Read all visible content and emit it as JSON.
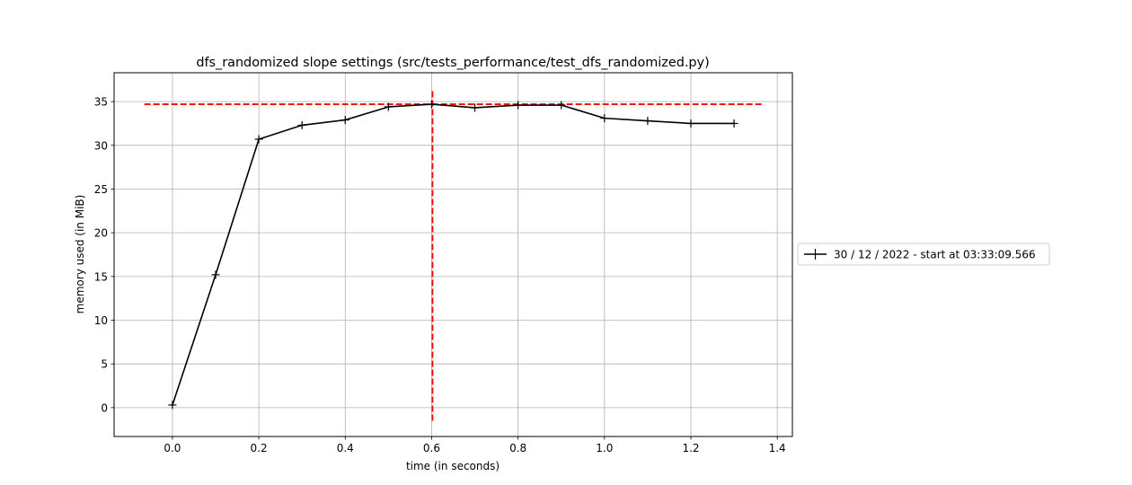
{
  "chart_data": {
    "type": "line",
    "title": "dfs_randomized slope settings (src/tests_performance/test_dfs_randomized.py)",
    "xlabel": "time (in seconds)",
    "ylabel": "memory used (in MiB)",
    "xlim": [
      -0.135,
      1.435
    ],
    "ylim": [
      -3.3,
      38.3
    ],
    "xticks": [
      0.0,
      0.2,
      0.4,
      0.6,
      0.8,
      1.0,
      1.2,
      1.4
    ],
    "xtick_labels": [
      "0.0",
      "0.2",
      "0.4",
      "0.6",
      "0.8",
      "1.0",
      "1.2",
      "1.4"
    ],
    "yticks": [
      0,
      5,
      10,
      15,
      20,
      25,
      30,
      35
    ],
    "ytick_labels": [
      "0",
      "5",
      "10",
      "15",
      "20",
      "25",
      "30",
      "35"
    ],
    "grid": true,
    "legend_position": "outside-right",
    "series": [
      {
        "name": "30 / 12 / 2022 - start at 03:33:09.566",
        "color": "#000000",
        "marker": "+",
        "x": [
          0.0,
          0.1,
          0.2,
          0.3,
          0.4,
          0.5,
          0.6,
          0.7,
          0.8,
          0.9,
          1.0,
          1.1,
          1.2,
          1.3
        ],
        "y": [
          0.3,
          15.2,
          30.7,
          32.3,
          32.9,
          34.4,
          34.7,
          34.3,
          34.6,
          34.6,
          33.1,
          32.8,
          32.5,
          32.5
        ]
      }
    ],
    "reference_lines": [
      {
        "orientation": "horizontal",
        "y": 34.7,
        "x_from": -0.065,
        "x_to": 1.37,
        "color": "#ff0000",
        "style": "dashed"
      },
      {
        "orientation": "vertical",
        "x": 0.602,
        "y_from": -1.5,
        "y_to": 36.5,
        "color": "#ff0000",
        "style": "dashed"
      }
    ]
  }
}
